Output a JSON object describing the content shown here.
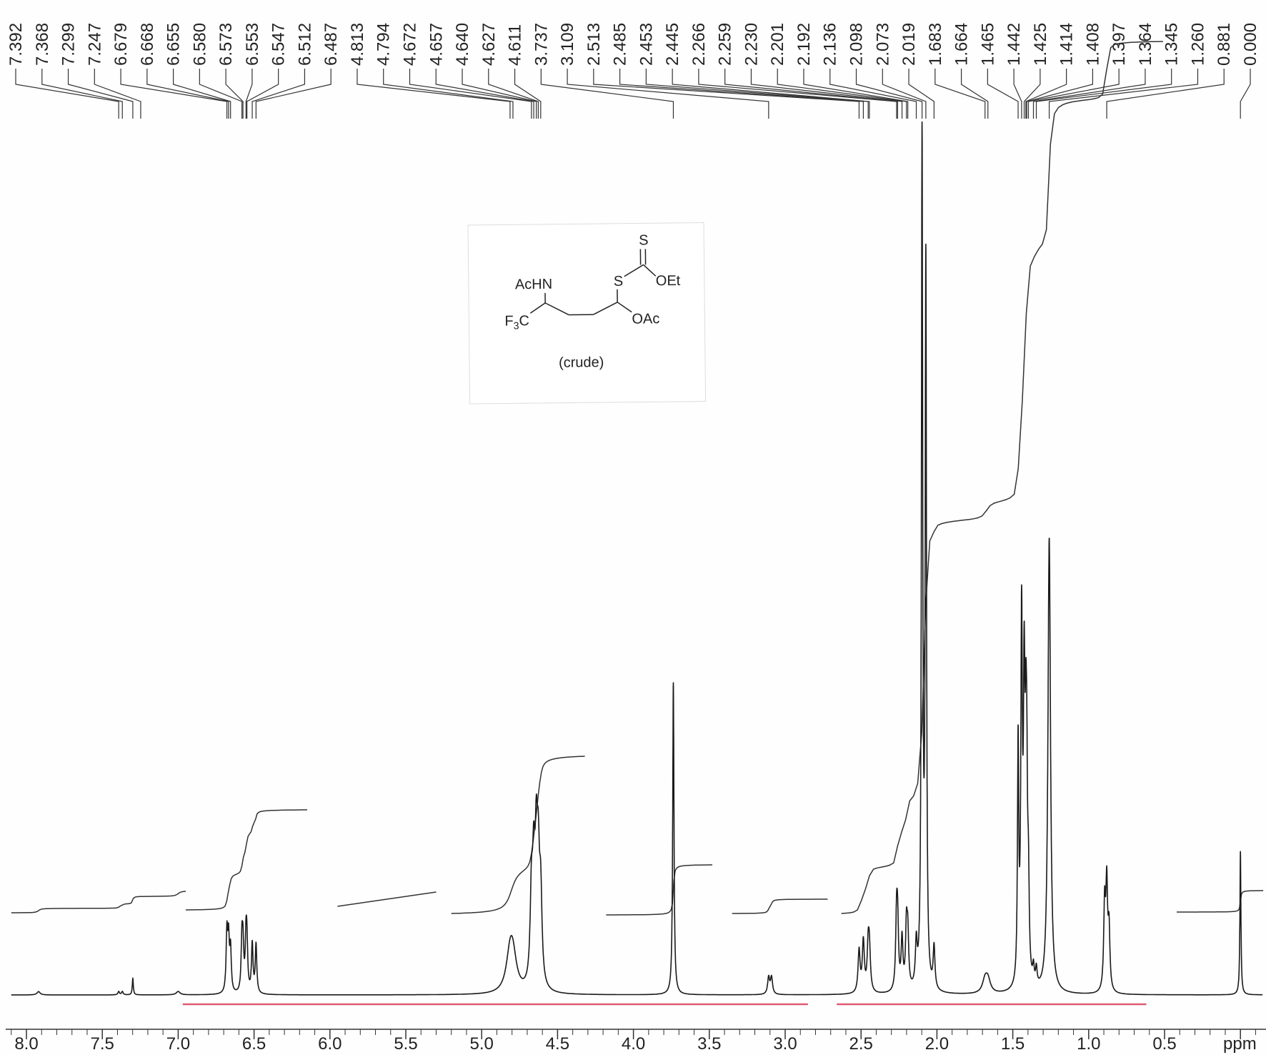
{
  "chart_data": {
    "type": "line",
    "xlabel": "ppm",
    "ylabel": "",
    "xlim": [
      8.1,
      -0.15
    ],
    "x_reversed": true,
    "tick_values": [
      8.0,
      7.5,
      7.0,
      6.5,
      6.0,
      5.5,
      5.0,
      4.5,
      4.0,
      3.5,
      3.0,
      2.5,
      2.0,
      1.5,
      1.0,
      0.5
    ],
    "tick_labels": [
      "8.0",
      "7.5",
      "7.0",
      "6.5",
      "6.0",
      "5.5",
      "5.0",
      "4.5",
      "4.0",
      "3.5",
      "3.0",
      "2.5",
      "2.0",
      "1.5",
      "1.0",
      "0.5"
    ],
    "peak_labels": [
      "7.392",
      "7.368",
      "7.299",
      "7.247",
      "6.679",
      "6.668",
      "6.655",
      "6.580",
      "6.573",
      "6.553",
      "6.547",
      "6.512",
      "6.487",
      "4.813",
      "4.794",
      "4.672",
      "4.657",
      "4.640",
      "4.627",
      "4.611",
      "3.737",
      "3.109",
      "2.513",
      "2.485",
      "2.453",
      "2.445",
      "2.266",
      "2.259",
      "2.230",
      "2.201",
      "2.192",
      "2.136",
      "2.098",
      "2.073",
      "2.019",
      "1.683",
      "1.664",
      "1.465",
      "1.442",
      "1.425",
      "1.414",
      "1.408",
      "1.397",
      "1.364",
      "1.345",
      "1.260",
      "0.881",
      "0.000"
    ],
    "peaks": [
      {
        "ppm": 7.92,
        "height": 0.004,
        "width": 0.012
      },
      {
        "ppm": 7.392,
        "height": 0.004,
        "width": 0.006
      },
      {
        "ppm": 7.368,
        "height": 0.004,
        "width": 0.006
      },
      {
        "ppm": 7.299,
        "height": 0.02,
        "width": 0.004
      },
      {
        "ppm": 7.0,
        "height": 0.004,
        "width": 0.015
      },
      {
        "ppm": 6.679,
        "height": 0.07,
        "width": 0.006
      },
      {
        "ppm": 6.668,
        "height": 0.06,
        "width": 0.006
      },
      {
        "ppm": 6.655,
        "height": 0.05,
        "width": 0.006
      },
      {
        "ppm": 6.58,
        "height": 0.058,
        "width": 0.006
      },
      {
        "ppm": 6.573,
        "height": 0.05,
        "width": 0.006
      },
      {
        "ppm": 6.553,
        "height": 0.058,
        "width": 0.006
      },
      {
        "ppm": 6.547,
        "height": 0.05,
        "width": 0.006
      },
      {
        "ppm": 6.512,
        "height": 0.058,
        "width": 0.006
      },
      {
        "ppm": 6.487,
        "height": 0.058,
        "width": 0.006
      },
      {
        "ppm": 4.813,
        "height": 0.04,
        "width": 0.03
      },
      {
        "ppm": 4.794,
        "height": 0.035,
        "width": 0.03
      },
      {
        "ppm": 4.672,
        "height": 0.1,
        "width": 0.01
      },
      {
        "ppm": 4.657,
        "height": 0.12,
        "width": 0.01
      },
      {
        "ppm": 4.64,
        "height": 0.14,
        "width": 0.01
      },
      {
        "ppm": 4.627,
        "height": 0.12,
        "width": 0.01
      },
      {
        "ppm": 4.611,
        "height": 0.1,
        "width": 0.01
      },
      {
        "ppm": 3.737,
        "height": 0.37,
        "width": 0.005
      },
      {
        "ppm": 3.109,
        "height": 0.02,
        "width": 0.008
      },
      {
        "ppm": 3.09,
        "height": 0.02,
        "width": 0.008
      },
      {
        "ppm": 2.513,
        "height": 0.05,
        "width": 0.008
      },
      {
        "ppm": 2.485,
        "height": 0.06,
        "width": 0.008
      },
      {
        "ppm": 2.453,
        "height": 0.05,
        "width": 0.008
      },
      {
        "ppm": 2.445,
        "height": 0.045,
        "width": 0.008
      },
      {
        "ppm": 2.266,
        "height": 0.08,
        "width": 0.007
      },
      {
        "ppm": 2.259,
        "height": 0.07,
        "width": 0.007
      },
      {
        "ppm": 2.23,
        "height": 0.06,
        "width": 0.007
      },
      {
        "ppm": 2.201,
        "height": 0.07,
        "width": 0.007
      },
      {
        "ppm": 2.192,
        "height": 0.06,
        "width": 0.007
      },
      {
        "ppm": 2.136,
        "height": 0.05,
        "width": 0.007
      },
      {
        "ppm": 2.098,
        "height": 1.0,
        "width": 0.005
      },
      {
        "ppm": 2.073,
        "height": 0.85,
        "width": 0.005
      },
      {
        "ppm": 2.019,
        "height": 0.05,
        "width": 0.007
      },
      {
        "ppm": 1.683,
        "height": 0.015,
        "width": 0.02
      },
      {
        "ppm": 1.664,
        "height": 0.015,
        "width": 0.02
      },
      {
        "ppm": 1.465,
        "height": 0.28,
        "width": 0.005
      },
      {
        "ppm": 1.442,
        "height": 0.42,
        "width": 0.006
      },
      {
        "ppm": 1.425,
        "height": 0.32,
        "width": 0.006
      },
      {
        "ppm": 1.414,
        "height": 0.2,
        "width": 0.006
      },
      {
        "ppm": 1.408,
        "height": 0.18,
        "width": 0.006
      },
      {
        "ppm": 1.397,
        "height": 0.1,
        "width": 0.006
      },
      {
        "ppm": 1.364,
        "height": 0.02,
        "width": 0.006
      },
      {
        "ppm": 1.345,
        "height": 0.02,
        "width": 0.006
      },
      {
        "ppm": 1.26,
        "height": 0.54,
        "width": 0.01
      },
      {
        "ppm": 0.895,
        "height": 0.1,
        "width": 0.007
      },
      {
        "ppm": 0.881,
        "height": 0.12,
        "width": 0.007
      },
      {
        "ppm": 0.866,
        "height": 0.07,
        "width": 0.007
      },
      {
        "ppm": 0.0,
        "height": 0.17,
        "width": 0.004
      }
    ],
    "integrals": [
      {
        "from": 8.1,
        "to": 6.95,
        "rise": 0.03
      },
      {
        "from": 6.95,
        "to": 6.15,
        "rise": 0.14
      },
      {
        "from": 5.95,
        "to": 5.3,
        "rise": 0.02
      },
      {
        "from": 5.2,
        "to": 4.32,
        "rise": 0.22
      },
      {
        "from": 4.18,
        "to": 3.48,
        "rise": 0.07
      },
      {
        "from": 3.35,
        "to": 2.72,
        "rise": 0.02
      },
      {
        "from": 2.63,
        "to": 0.51,
        "rise": 1.22
      },
      {
        "from": 0.42,
        "to": -0.15,
        "rise": 0.03
      }
    ],
    "red_bars": [
      {
        "from": 6.97,
        "to": 2.85
      },
      {
        "from": 2.66,
        "to": 0.62
      }
    ]
  },
  "structure": {
    "acnh": "AcHN",
    "s_top": "S",
    "s_link": "S",
    "oet": "OEt",
    "f3c_main": "F",
    "f3c_sub": "3",
    "f3c_c": "C",
    "oac": "OAc",
    "caption": "(crude)"
  },
  "colors": {
    "trace": "#1a1a1a",
    "integral_bar": "#e05a72",
    "background": "#fefefe"
  }
}
